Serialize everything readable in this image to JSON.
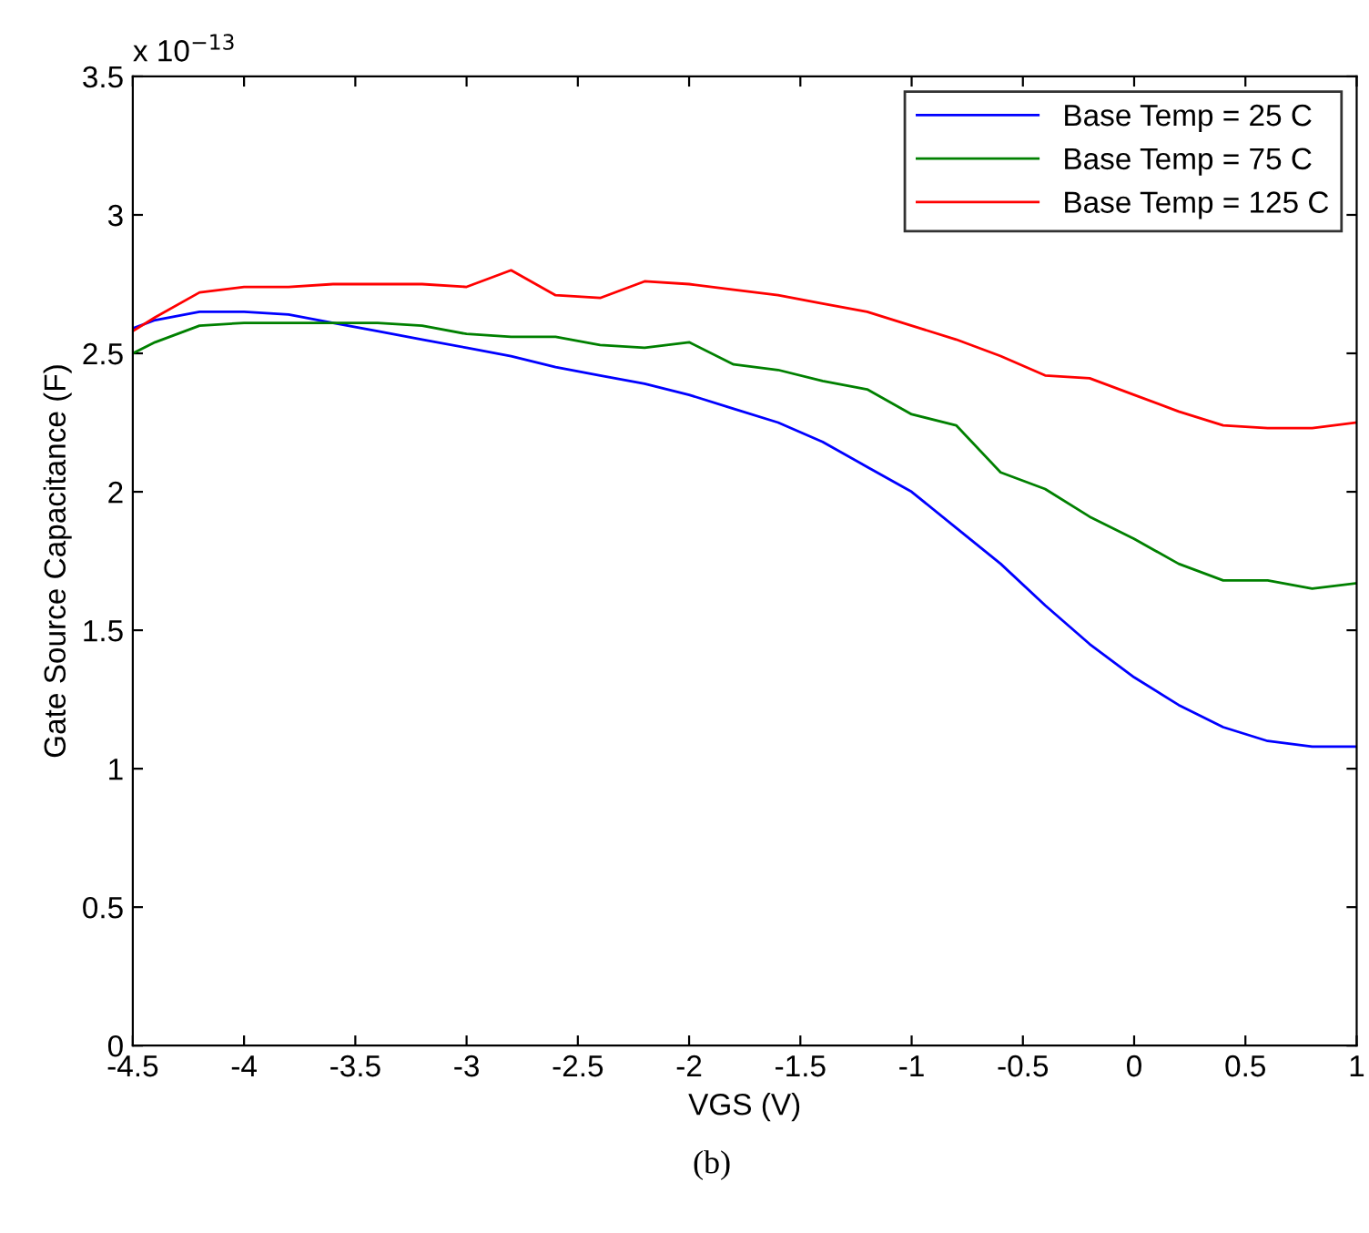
{
  "chart_data": {
    "type": "line",
    "xlabel": "VGS (V)",
    "ylabel": "Gate Source Capacitance (F)",
    "x": [
      -4.5,
      -4.4,
      -4.2,
      -4.0,
      -3.8,
      -3.6,
      -3.4,
      -3.2,
      -3.0,
      -2.8,
      -2.6,
      -2.4,
      -2.2,
      -2.0,
      -1.8,
      -1.6,
      -1.4,
      -1.2,
      -1.0,
      -0.8,
      -0.6,
      -0.4,
      -0.2,
      0,
      0.2,
      0.4,
      0.6,
      0.8,
      1.0
    ],
    "series": [
      {
        "name": "Base Temp = 25 C",
        "color": "#0000ff",
        "values": [
          2.59,
          2.62,
          2.65,
          2.65,
          2.64,
          2.61,
          2.58,
          2.55,
          2.52,
          2.49,
          2.45,
          2.42,
          2.39,
          2.35,
          2.3,
          2.25,
          2.18,
          2.09,
          2.0,
          1.87,
          1.74,
          1.59,
          1.45,
          1.33,
          1.23,
          1.15,
          1.1,
          1.08,
          1.08
        ]
      },
      {
        "name": "Base Temp = 75 C",
        "color": "#008000",
        "values": [
          2.5,
          2.54,
          2.6,
          2.61,
          2.61,
          2.61,
          2.61,
          2.6,
          2.57,
          2.56,
          2.56,
          2.53,
          2.52,
          2.54,
          2.46,
          2.44,
          2.4,
          2.37,
          2.28,
          2.24,
          2.07,
          2.01,
          1.91,
          1.83,
          1.74,
          1.68,
          1.68,
          1.65,
          1.67
        ]
      },
      {
        "name": "Base Temp = 125 C",
        "color": "#ff0000",
        "values": [
          2.58,
          2.63,
          2.72,
          2.74,
          2.74,
          2.75,
          2.75,
          2.75,
          2.74,
          2.8,
          2.71,
          2.7,
          2.76,
          2.75,
          2.73,
          2.71,
          2.68,
          2.65,
          2.6,
          2.55,
          2.49,
          2.42,
          2.41,
          2.35,
          2.29,
          2.24,
          2.23,
          2.23,
          2.25
        ]
      }
    ],
    "xlim": [
      -4.5,
      1
    ],
    "xticks": [
      -4.5,
      -4,
      -3.5,
      -3,
      -2.5,
      -2,
      -1.5,
      -1,
      -0.5,
      0,
      0.5,
      1
    ],
    "ylim": [
      0,
      3.5
    ],
    "yticks": [
      0,
      0.5,
      1,
      1.5,
      2,
      2.5,
      3,
      3.5
    ],
    "annotations": [
      "x 10$^{−13}$",
      "(b)"
    ],
    "legend": "top right",
    "grid": false,
    "marker": "none",
    "line_style": "solid"
  }
}
